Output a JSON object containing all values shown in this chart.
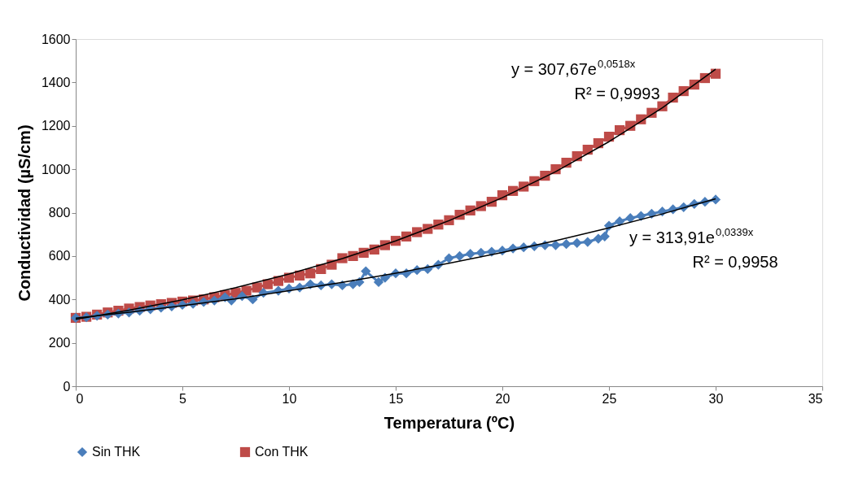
{
  "chart_data": {
    "type": "line",
    "xlabel": "Temperatura (ºC)",
    "ylabel": "Conductividad (µS/cm)",
    "xlim": [
      0,
      35
    ],
    "xticks": [
      0,
      5,
      10,
      15,
      20,
      25,
      30,
      35
    ],
    "ylim": [
      0,
      1600
    ],
    "yticks": [
      0,
      200,
      400,
      600,
      800,
      1000,
      1200,
      1400,
      1600
    ],
    "grid": false,
    "legend": "bottom",
    "line_style": "solid",
    "annotations": [
      "y = 307,67e$^{0,0518x}$",
      "R² = 0,9993",
      "y = 313,91e$^{0,0339x}$",
      "R² = 0,9958"
    ],
    "series": [
      {
        "name": "Sin THK",
        "color": "#4a7ebb",
        "marker": "diamond",
        "x": [
          0,
          0.5,
          1,
          1.5,
          2,
          2.5,
          3,
          3.5,
          4,
          4.5,
          5,
          5.5,
          6,
          6.5,
          7,
          7.3,
          7.8,
          8.3,
          8.8,
          9.5,
          10,
          10.5,
          11,
          11.5,
          12,
          12.5,
          13,
          13.3,
          13.6,
          14.2,
          14.5,
          15,
          15.5,
          16,
          16.5,
          17,
          17.5,
          18,
          18.5,
          19,
          19.5,
          20,
          20.5,
          21,
          21.5,
          22,
          22.5,
          23,
          23.5,
          24,
          24.5,
          24.8,
          25,
          25.5,
          26,
          26.5,
          27,
          27.5,
          28,
          28.5,
          29,
          29.5,
          30
        ],
        "values": [
          315,
          318,
          325,
          330,
          335,
          340,
          348,
          355,
          362,
          368,
          375,
          380,
          388,
          395,
          410,
          395,
          415,
          400,
          430,
          440,
          450,
          455,
          470,
          465,
          470,
          465,
          470,
          480,
          530,
          480,
          500,
          520,
          520,
          535,
          540,
          560,
          590,
          600,
          610,
          615,
          620,
          625,
          635,
          640,
          645,
          650,
          650,
          655,
          660,
          665,
          680,
          690,
          740,
          760,
          775,
          785,
          795,
          805,
          815,
          825,
          840,
          850,
          860
        ]
      },
      {
        "name": "Con THK",
        "color": "#be4b48",
        "marker": "square",
        "x": [
          0,
          0.5,
          1,
          1.5,
          2,
          2.5,
          3,
          3.5,
          4,
          4.5,
          5,
          5.5,
          6,
          6.5,
          7,
          7.5,
          8,
          8.5,
          9,
          9.5,
          10,
          10.5,
          11,
          11.5,
          12,
          12.5,
          13,
          13.5,
          14,
          14.5,
          15,
          15.5,
          16,
          16.5,
          17,
          17.5,
          18,
          18.5,
          19,
          19.5,
          20,
          20.5,
          21,
          21.5,
          22,
          22.5,
          23,
          23.5,
          24,
          24.5,
          25,
          25.5,
          26,
          26.5,
          27,
          27.5,
          28,
          28.5,
          29,
          29.5,
          30
        ],
        "values": [
          315,
          320,
          330,
          340,
          348,
          358,
          365,
          372,
          378,
          384,
          390,
          395,
          400,
          410,
          420,
          430,
          440,
          455,
          470,
          485,
          500,
          510,
          520,
          540,
          560,
          590,
          600,
          615,
          630,
          650,
          670,
          690,
          710,
          725,
          745,
          765,
          790,
          810,
          830,
          850,
          880,
          900,
          920,
          945,
          970,
          1000,
          1030,
          1060,
          1090,
          1120,
          1150,
          1180,
          1200,
          1230,
          1260,
          1290,
          1330,
          1360,
          1390,
          1420,
          1440
        ]
      },
      {
        "type": "line",
        "color": "#000000",
        "marker": "none",
        "x": [
          0,
          2.5,
          5,
          7.5,
          10,
          12.5,
          15,
          17.5,
          20,
          22.5,
          25,
          27.5,
          30
        ],
        "values": [
          308,
          350,
          398,
          454,
          517,
          588,
          670,
          763,
          869,
          989,
          1127,
          1283,
          1461
        ]
      },
      {
        "type": "line",
        "color": "#000000",
        "marker": "none",
        "x": [
          0,
          2.5,
          5,
          7.5,
          10,
          12.5,
          15,
          17.5,
          20,
          22.5,
          25,
          27.5,
          30
        ],
        "values": [
          314,
          341,
          371,
          403,
          440,
          479,
          521,
          567,
          616,
          671,
          730,
          794,
          864
        ]
      }
    ]
  }
}
